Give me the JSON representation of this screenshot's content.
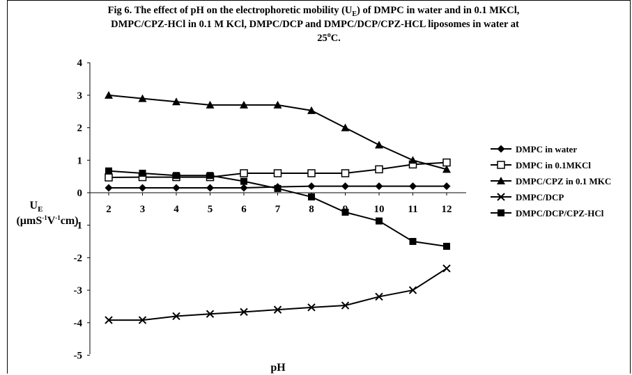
{
  "chart_data": {
    "type": "line",
    "title_lines": [
      "Fig 6. The effect of pH on the electrophoretic mobility (U",
      "DMPC/CPZ-HCl in 0.1 M KCl, DMPC/DCP and DMPC/DCP/CPZ-HCL liposomes in water at",
      "25"
    ],
    "title_sub_e": "E",
    "title_line1_tail": ") of DMPC in water and in 0.1 MKCl,",
    "title_sup_o": "o",
    "title_line3_tail": "C.",
    "xlabel": "pH",
    "ylabel_main": "U",
    "ylabel_sub": "E",
    "ylabel_units": [
      "(µmS",
      "-1",
      "V",
      "-1",
      "cm)"
    ],
    "x": [
      2,
      3,
      4,
      5,
      6,
      7,
      8,
      9,
      10,
      11,
      12
    ],
    "xlim": [
      1.5,
      12.5
    ],
    "ylim": [
      -5,
      4
    ],
    "yticks": [
      4,
      3,
      2,
      1,
      0,
      -1,
      -2,
      -3,
      -4,
      -5
    ],
    "legend_position": "right",
    "series": [
      {
        "name": "DMPC in water",
        "marker": "diamond",
        "values": [
          0.15,
          0.15,
          0.15,
          0.15,
          0.15,
          0.18,
          0.2,
          0.2,
          0.2,
          0.2,
          0.2
        ]
      },
      {
        "name": "DMPC in 0.1MKCl",
        "marker": "square-open",
        "values": [
          0.47,
          0.48,
          0.48,
          0.48,
          0.6,
          0.6,
          0.6,
          0.6,
          0.72,
          0.87,
          0.93
        ]
      },
      {
        "name": "DMPC/CPZ in 0.1 MKC",
        "marker": "triangle",
        "values": [
          3.0,
          2.9,
          2.8,
          2.7,
          2.7,
          2.7,
          2.53,
          2.0,
          1.47,
          1.0,
          0.72
        ]
      },
      {
        "name": "DMPC/DCP",
        "marker": "x",
        "values": [
          -3.92,
          -3.92,
          -3.8,
          -3.73,
          -3.67,
          -3.6,
          -3.53,
          -3.47,
          -3.2,
          -3.0,
          -2.33
        ]
      },
      {
        "name": "DMPC/DCP/CPZ-HCl",
        "marker": "square-filled",
        "values": [
          0.67,
          0.6,
          0.53,
          0.53,
          0.35,
          0.13,
          -0.13,
          -0.6,
          -0.87,
          -1.5,
          -1.65
        ]
      }
    ]
  }
}
